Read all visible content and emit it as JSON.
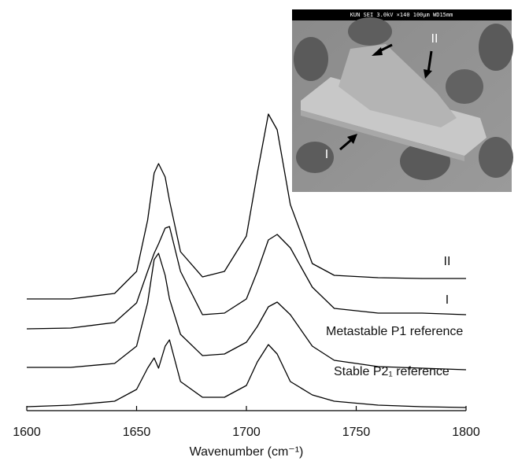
{
  "chart_data": {
    "type": "line",
    "x_label": "Wavenumber (cm⁻¹)",
    "xlim": [
      1600,
      1800
    ],
    "xticks": [
      1600,
      1650,
      1700,
      1750,
      1800
    ],
    "ylim": [
      0,
      522
    ],
    "x": [
      1600,
      1620,
      1640,
      1650,
      1655,
      1658,
      1660,
      1663,
      1665,
      1670,
      1680,
      1690,
      1700,
      1705,
      1710,
      1714,
      1720,
      1730,
      1740,
      1760,
      1780,
      1800
    ],
    "series": [
      {
        "name": "II",
        "color": "#000000",
        "values": [
          142,
          142,
          149,
          177,
          242,
          302,
          314,
          297,
          267,
          202,
          170,
          177,
          222,
          302,
          377,
          357,
          262,
          187,
          172,
          169,
          168,
          168
        ]
      },
      {
        "name": "I",
        "color": "#000000",
        "values": [
          104,
          105,
          112,
          137,
          177,
          200,
          212,
          232,
          234,
          177,
          122,
          124,
          142,
          177,
          217,
          224,
          207,
          157,
          130,
          124,
          124,
          122
        ]
      },
      {
        "name": "Metastable P1 reference",
        "color": "#000000",
        "values": [
          55,
          55,
          60,
          82,
          137,
          192,
          200,
          172,
          142,
          97,
          70,
          72,
          87,
          107,
          132,
          138,
          122,
          82,
          64,
          56,
          54,
          52
        ]
      },
      {
        "name": "Stable P2₁ reference",
        "color": "#000000",
        "values": [
          5,
          7,
          12,
          27,
          54,
          67,
          54,
          82,
          90,
          37,
          17,
          17,
          32,
          62,
          84,
          72,
          37,
          20,
          12,
          7,
          5,
          4
        ]
      }
    ],
    "inset_banner": "KUN SEI   3.0kV   ×140  100μm WD15mm",
    "inset_labels": [
      "II",
      "I"
    ]
  }
}
